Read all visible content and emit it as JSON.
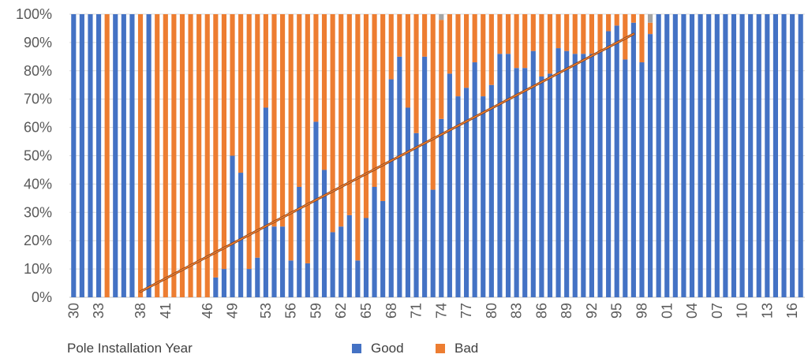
{
  "chart_data": {
    "type": "bar",
    "stacked": true,
    "percent_stacked": true,
    "xlabel": "Pole Installation Year",
    "ylabel": "",
    "ylim": [
      0,
      100
    ],
    "y_ticks": [
      "0%",
      "10%",
      "20%",
      "30%",
      "40%",
      "50%",
      "60%",
      "70%",
      "80%",
      "90%",
      "100%"
    ],
    "categories": [
      "30",
      "31",
      "32",
      "33",
      "34",
      "35",
      "36",
      "37",
      "38",
      "39",
      "40",
      "41",
      "42",
      "43",
      "44",
      "45",
      "46",
      "47",
      "48",
      "49",
      "50",
      "51",
      "52",
      "53",
      "54",
      "55",
      "56",
      "57",
      "58",
      "59",
      "60",
      "61",
      "62",
      "63",
      "64",
      "65",
      "66",
      "67",
      "68",
      "69",
      "70",
      "71",
      "72",
      "73",
      "74",
      "75",
      "76",
      "77",
      "78",
      "79",
      "80",
      "81",
      "82",
      "83",
      "84",
      "85",
      "86",
      "87",
      "88",
      "89",
      "90",
      "91",
      "92",
      "93",
      "94",
      "95",
      "96",
      "97",
      "98",
      "99",
      "00",
      "01",
      "02",
      "03",
      "04",
      "05",
      "06",
      "07",
      "08",
      "09",
      "10",
      "11",
      "12",
      "13",
      "14",
      "15",
      "16",
      "17"
    ],
    "shown_tick_labels": [
      "30",
      "33",
      "38",
      "41",
      "46",
      "49",
      "53",
      "56",
      "59",
      "62",
      "65",
      "68",
      "71",
      "74",
      "77",
      "80",
      "83",
      "86",
      "89",
      "92",
      "95",
      "98",
      "01",
      "04",
      "07",
      "10",
      "13",
      "16"
    ],
    "series": [
      {
        "name": "Good",
        "color": "#4472C4",
        "values": [
          100,
          100,
          100,
          100,
          0,
          100,
          100,
          100,
          0,
          100,
          0,
          0,
          0,
          0,
          0,
          0,
          0,
          7,
          10,
          50,
          44,
          10,
          14,
          67,
          25,
          25,
          13,
          39,
          12,
          62,
          45,
          23,
          25,
          29,
          13,
          28,
          39,
          34,
          77,
          85,
          67,
          58,
          85,
          38,
          63,
          79,
          71,
          74,
          83,
          71,
          75,
          86,
          86,
          81,
          81,
          87,
          78,
          79,
          88,
          87,
          86,
          86,
          86,
          87,
          94,
          96,
          84,
          97,
          83,
          93,
          100,
          100,
          100,
          100,
          100,
          100,
          100,
          100,
          100,
          100,
          100,
          100,
          100,
          100,
          100,
          100,
          100,
          100
        ]
      },
      {
        "name": "Bad",
        "color": "#ED7D31",
        "values": [
          0,
          0,
          0,
          0,
          100,
          0,
          0,
          0,
          100,
          0,
          100,
          100,
          100,
          100,
          100,
          100,
          100,
          93,
          90,
          50,
          56,
          90,
          86,
          33,
          75,
          75,
          87,
          61,
          88,
          38,
          55,
          77,
          75,
          71,
          87,
          72,
          61,
          66,
          23,
          15,
          33,
          42,
          15,
          62,
          35,
          21,
          29,
          26,
          17,
          29,
          25,
          14,
          14,
          19,
          19,
          13,
          22,
          21,
          12,
          13,
          14,
          14,
          14,
          13,
          6,
          4,
          16,
          3,
          17,
          4,
          0,
          0,
          0,
          0,
          0,
          0,
          0,
          0,
          0,
          0,
          0,
          0,
          0,
          0,
          0,
          0,
          0,
          0
        ]
      },
      {
        "name": "",
        "color": "#A5A5A5",
        "values": [
          0,
          0,
          0,
          0,
          0,
          0,
          0,
          0,
          0,
          0,
          0,
          0,
          0,
          0,
          0,
          0,
          0,
          0,
          0,
          0,
          0,
          0,
          0,
          0,
          0,
          0,
          0,
          0,
          0,
          0,
          0,
          0,
          0,
          0,
          0,
          0,
          0,
          0,
          0,
          0,
          0,
          0,
          0,
          0,
          2,
          0,
          0,
          0,
          0,
          0,
          0,
          0,
          0,
          0,
          0,
          0,
          0,
          0,
          0,
          0,
          0,
          0,
          0,
          0,
          0,
          0,
          0,
          0,
          0,
          3,
          0,
          0,
          0,
          0,
          0,
          0,
          0,
          0,
          0,
          0,
          0,
          0,
          0,
          0,
          0,
          0,
          0,
          0
        ]
      }
    ],
    "trendline": {
      "color": "#ED7D31",
      "from": {
        "x": "38",
        "y": 2
      },
      "to": {
        "x": "97",
        "y": 93
      }
    },
    "grid": "horizontal",
    "legend": "bottom",
    "legend_entries": [
      "Good",
      "Bad"
    ]
  }
}
